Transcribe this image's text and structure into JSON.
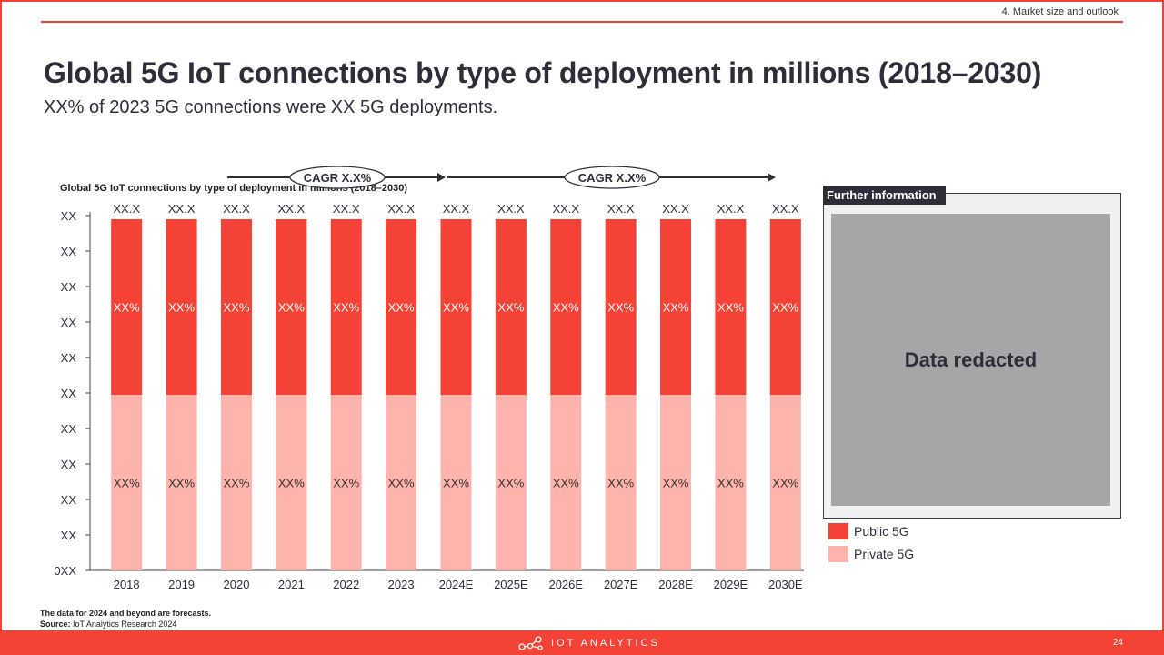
{
  "header": {
    "section": "4. Market size and outlook"
  },
  "title": "Global 5G IoT connections by type of deployment in millions (2018–2030)",
  "subtitle": "XX% of 2023 5G connections were XX 5G deployments.",
  "chart_data": {
    "type": "bar",
    "stacked": true,
    "title": "Global 5G IoT connections by type of deployment in millions (2018–2030)",
    "categories": [
      "2018",
      "2019",
      "2020",
      "2021",
      "2022",
      "2023",
      "2024E",
      "2025E",
      "2026E",
      "2027E",
      "2028E",
      "2029E",
      "2030E"
    ],
    "y_tick_labels": [
      "0XX",
      "XX",
      "XX",
      "XX",
      "XX",
      "XX",
      "XX",
      "XX",
      "XX",
      "XX",
      "XX"
    ],
    "series": [
      {
        "name": "Private 5G",
        "color": "#ffb3ad",
        "share": 0.5,
        "labels": [
          "XX%",
          "XX%",
          "XX%",
          "XX%",
          "XX%",
          "XX%",
          "XX%",
          "XX%",
          "XX%",
          "XX%",
          "XX%",
          "XX%",
          "XX%"
        ]
      },
      {
        "name": "Public 5G",
        "color": "#f44336",
        "share": 0.5,
        "labels": [
          "XX%",
          "XX%",
          "XX%",
          "XX%",
          "XX%",
          "XX%",
          "XX%",
          "XX%",
          "XX%",
          "XX%",
          "XX%",
          "XX%",
          "XX%"
        ]
      }
    ],
    "totals": [
      "XX.X",
      "XX.X",
      "XX.X",
      "XX.X",
      "XX.X",
      "XX.X",
      "XX.X",
      "XX.X",
      "XX.X",
      "XX.X",
      "XX.X",
      "XX.X",
      "XX.X"
    ],
    "cagr": [
      {
        "label": "CAGR X.X%",
        "from": "2018",
        "to": "2024E"
      },
      {
        "label": "CAGR X.X%",
        "from": "2024E",
        "to": "2030E"
      }
    ],
    "values_redacted": true
  },
  "side_panel": {
    "title": "Further information",
    "redacted_text": "Data redacted"
  },
  "legend": [
    {
      "label": "Public 5G",
      "color": "#f44336"
    },
    {
      "label": "Private 5G",
      "color": "#ffb3ad"
    }
  ],
  "footnote": {
    "note": "The data for 2024 and beyond are forecasts.",
    "source_label": "Source:",
    "source_text": " IoT Analytics Research 2024"
  },
  "footer": {
    "brand": "IOT ANALYTICS",
    "page_number": "24"
  }
}
